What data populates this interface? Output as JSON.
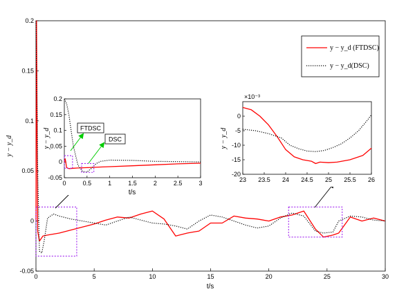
{
  "chart_data": [
    {
      "type": "line",
      "title": "",
      "xlabel": "t/s",
      "ylabel": "y − y_d",
      "xlim": [
        0,
        30
      ],
      "ylim": [
        -0.05,
        0.2
      ],
      "xticks": [
        "0",
        "5",
        "10",
        "15",
        "20",
        "25",
        "30"
      ],
      "yticks": [
        "-0.05",
        "0",
        "0.05",
        "0.1",
        "0.15",
        "0.2"
      ],
      "legend": {
        "placement": "top-right",
        "entries": [
          "y − y_d (FTDSC)",
          "y − y_d(DSC)"
        ]
      },
      "series": [
        {
          "name": "y − y_d (FTDSC)",
          "color": "#ff0000",
          "style": "solid",
          "x": [
            0,
            0.05,
            0.15,
            0.3,
            0.6,
            1.0,
            2.0,
            3.0,
            4.0,
            5.0,
            6.0,
            7.0,
            8.0,
            9.0,
            10.0,
            11.0,
            12.0,
            13.0,
            13.5,
            14.0,
            15.0,
            16.0,
            17.0,
            18.0,
            19.0,
            20.0,
            21.0,
            22.0,
            23.0,
            24.0,
            24.7,
            25.5,
            26.0,
            27.0,
            28.0,
            29.0,
            30.0
          ],
          "y": [
            0.0,
            0.2,
            -0.01,
            -0.02,
            -0.015,
            -0.014,
            -0.012,
            -0.009,
            -0.006,
            -0.003,
            0.001,
            0.004,
            0.003,
            0.007,
            0.01,
            0.002,
            -0.015,
            -0.012,
            -0.011,
            -0.01,
            -0.002,
            -0.002,
            0.005,
            0.003,
            0.002,
            0.0,
            0.004,
            0.006,
            0.01,
            -0.008,
            -0.016,
            -0.014,
            -0.012,
            0.004,
            0.0,
            0.003,
            0.0
          ]
        },
        {
          "name": "y − y_d(DSC)",
          "color": "#000000",
          "style": "dotted",
          "x": [
            0,
            0.05,
            0.15,
            0.3,
            0.5,
            0.7,
            1.0,
            1.5,
            2.0,
            3.0,
            4.0,
            5.0,
            6.0,
            7.0,
            8.0,
            9.0,
            10.0,
            11.0,
            12.0,
            13.0,
            14.0,
            15.0,
            16.0,
            17.0,
            18.0,
            19.0,
            20.0,
            21.0,
            22.0,
            23.0,
            24.0,
            24.7,
            25.5,
            26.0,
            27.0,
            28.0,
            29.0,
            30.0
          ],
          "y": [
            0.2,
            0.15,
            0.05,
            -0.03,
            -0.032,
            -0.02,
            0.003,
            0.007,
            0.005,
            0.002,
            0.0,
            -0.002,
            -0.004,
            0.0,
            0.004,
            0.001,
            -0.002,
            -0.003,
            -0.005,
            -0.008,
            0.0,
            0.006,
            0.004,
            0.0,
            -0.004,
            -0.007,
            -0.005,
            0.003,
            0.008,
            0.005,
            -0.01,
            -0.012,
            -0.011,
            0.0,
            0.005,
            0.004,
            0.001,
            0.0
          ]
        }
      ],
      "zoom_boxes": [
        {
          "x": [
            0,
            3.5
          ],
          "y": [
            -0.035,
            0.014
          ]
        },
        {
          "x": [
            21.7,
            26.3
          ],
          "y": [
            -0.016,
            0.014
          ]
        }
      ]
    },
    {
      "type": "line",
      "title": "",
      "xlabel": "t/s",
      "ylabel": "y − y_d",
      "xlim": [
        0,
        3
      ],
      "ylim": [
        -0.05,
        0.2
      ],
      "xticks": [
        "0",
        "0.5",
        "1",
        "1.5",
        "2",
        "2.5",
        "3"
      ],
      "yticks": [
        "-0.05",
        "0",
        "0.05",
        "0.1",
        "0.15",
        "0.2"
      ],
      "callouts": [
        "FTDSC",
        "DSC"
      ],
      "callout_color": "#00cc00",
      "series": [
        {
          "name": "y − y_d (FTDSC)",
          "color": "#ff0000",
          "style": "solid",
          "x": [
            0,
            0.02,
            0.05,
            0.1,
            0.2,
            0.3,
            0.5,
            0.8,
            1.0,
            1.5,
            2.0,
            2.5,
            3.0
          ],
          "y": [
            0.0,
            0.01,
            -0.018,
            -0.021,
            -0.02,
            -0.019,
            -0.018,
            -0.016,
            -0.015,
            -0.012,
            -0.009,
            -0.006,
            -0.004
          ]
        },
        {
          "name": "y − y_d(DSC)",
          "color": "#000000",
          "style": "dotted",
          "x": [
            0,
            0.05,
            0.1,
            0.15,
            0.2,
            0.3,
            0.4,
            0.5,
            0.6,
            0.7,
            0.8,
            1.0,
            1.5,
            2.0,
            2.5,
            3.0
          ],
          "y": [
            0.2,
            0.185,
            0.15,
            0.1,
            0.05,
            -0.01,
            -0.03,
            -0.032,
            -0.02,
            -0.005,
            0.002,
            0.006,
            0.005,
            0.002,
            0.001,
            0.0
          ]
        }
      ],
      "zoom_boxes": [
        {
          "x": [
            0,
            0.18
          ],
          "y": [
            -0.02,
            0.02
          ]
        },
        {
          "x": [
            0.38,
            0.65
          ],
          "y": [
            -0.033,
            -0.005
          ]
        }
      ]
    },
    {
      "type": "line",
      "title": "",
      "xlabel": "",
      "ylabel": "y − y_d",
      "exponent": "×10⁻³",
      "xlim": [
        23,
        26
      ],
      "ylim": [
        -20,
        5
      ],
      "xticks": [
        "23",
        "23.5",
        "24",
        "24.5",
        "25",
        "25.5",
        "26"
      ],
      "yticks": [
        "-20",
        "-15",
        "-10",
        "-5",
        "0"
      ],
      "series": [
        {
          "name": "y − y_d (FTDSC)",
          "color": "#ff0000",
          "style": "solid",
          "x": [
            23.0,
            23.2,
            23.4,
            23.6,
            23.8,
            24.0,
            24.2,
            24.4,
            24.6,
            24.7,
            24.8,
            25.0,
            25.2,
            25.5,
            25.8,
            26.0
          ],
          "y": [
            3,
            2.2,
            0,
            -3,
            -7,
            -11.5,
            -14,
            -15,
            -15.5,
            -16.3,
            -15.8,
            -16,
            -15.8,
            -15,
            -13.5,
            -11
          ]
        },
        {
          "name": "y − y_d(DSC)",
          "color": "#000000",
          "style": "dotted",
          "x": [
            23.0,
            23.3,
            23.6,
            23.9,
            24.1,
            24.3,
            24.5,
            24.7,
            24.9,
            25.1,
            25.3,
            25.5,
            25.7,
            25.9,
            26.0
          ],
          "y": [
            -4.5,
            -5,
            -6,
            -7.5,
            -10,
            -11.2,
            -12,
            -12.2,
            -11.8,
            -10.8,
            -9.5,
            -7.5,
            -5,
            -1.5,
            0.5
          ]
        }
      ]
    }
  ]
}
